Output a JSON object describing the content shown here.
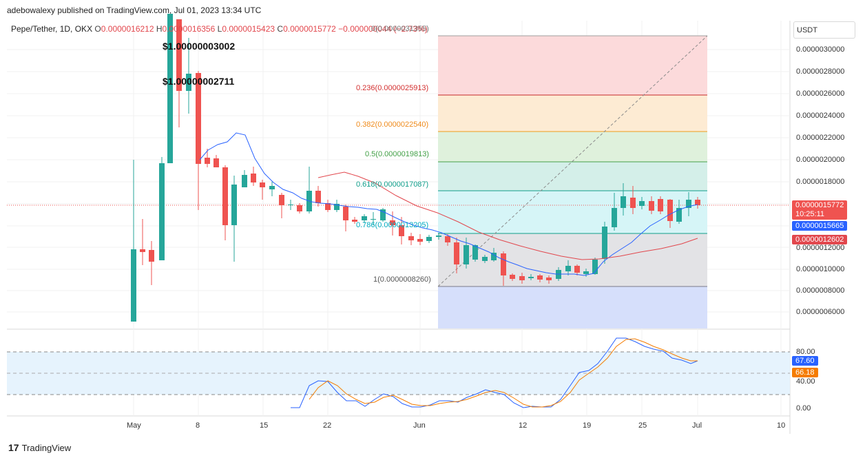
{
  "header": {
    "published_by": "adebowalexy published on TradingView.com, Jul 01, 2023 13:34 UTC"
  },
  "legend": {
    "symbol": "Pepe/Tether, 1D, OKX",
    "open_label": "O",
    "open_value": "0.0000016212",
    "high_label": "H",
    "high_value": "0.0000016356",
    "low_label": "L",
    "low_value": "0.0000015423",
    "close_label": "C",
    "close_value": "0.0000015772",
    "change": "−0.000000044 (−2.73%)"
  },
  "bubbles": {
    "first": "$1.00000003002",
    "second": "$1.00000002711"
  },
  "currency_button": "USDT",
  "price_axis": {
    "labels": [
      "0.0000030000",
      "0.0000028000",
      "0.0000026000",
      "0.0000024000",
      "0.0000022000",
      "0.0000020000",
      "0.0000018000",
      "0.0000012000",
      "0.0000010000",
      "0.0000008000",
      "0.0000006000"
    ]
  },
  "price_tags": {
    "last_price": "0.0000015772",
    "countdown": "10:25:11",
    "ma_fast": "0.0000015665",
    "ma_slow": "0.0000012602"
  },
  "fib_levels": [
    {
      "label": "0(0.0000031355)"
    },
    {
      "label": "0.236(0.0000025913)"
    },
    {
      "label": "0.382(0.0000022540)"
    },
    {
      "label": "0.5(0.0000019813)"
    },
    {
      "label": "0.618(0.0000017087)"
    },
    {
      "label": "0.786(0.0000013205)"
    },
    {
      "label": "1(0.0000008260)"
    }
  ],
  "oscillator": {
    "axis_labels": [
      "80.00",
      "40.00",
      "0.00"
    ],
    "k_value": "67.60",
    "d_value": "66.18"
  },
  "time_axis": {
    "labels": [
      "May",
      "8",
      "15",
      "22",
      "Jun",
      "12",
      "19",
      "25",
      "Jul",
      "10"
    ]
  },
  "colors": {
    "up": "#26a69a",
    "down": "#ef5350",
    "ma_fast": "#2962ff",
    "ma_slow": "#e2474d",
    "stoch_d": "#f57c00"
  },
  "brand": "TradingView"
}
